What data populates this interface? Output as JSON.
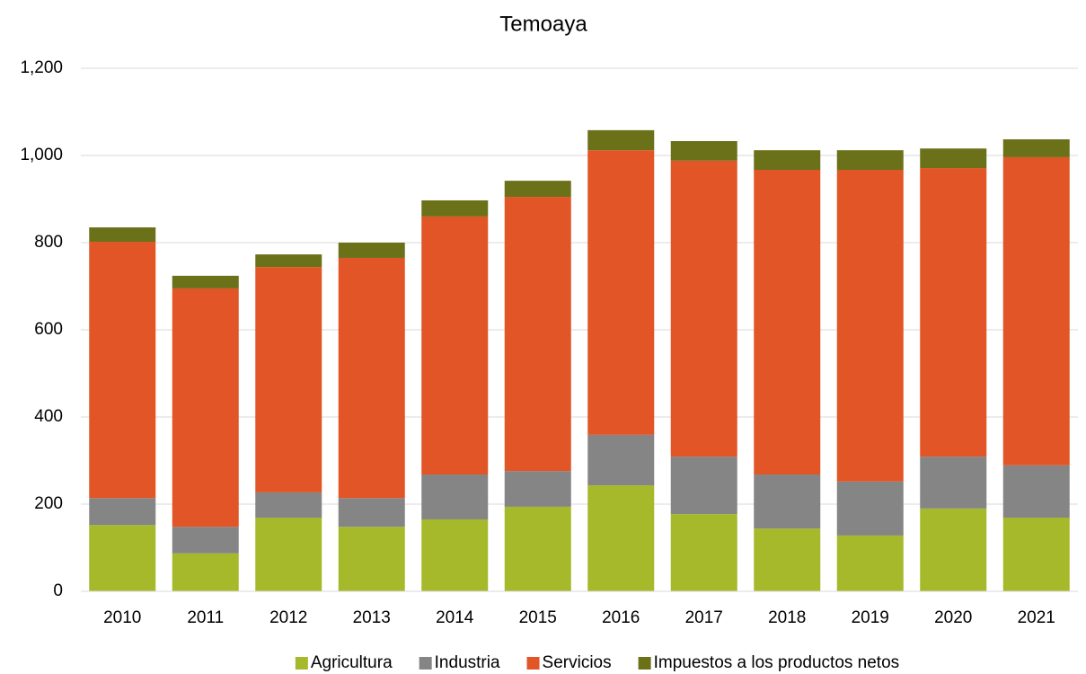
{
  "chart_data": {
    "type": "stacked_bar",
    "title": "Temoaya",
    "categories": [
      "2010",
      "2011",
      "2012",
      "2013",
      "2014",
      "2015",
      "2016",
      "2017",
      "2018",
      "2019",
      "2020",
      "2021"
    ],
    "series": [
      {
        "name": "Agricultura",
        "color": "#a5b92a",
        "values": [
          152,
          87,
          169,
          148,
          165,
          194,
          243,
          177,
          144,
          128,
          190,
          169
        ]
      },
      {
        "name": "Industria",
        "color": "#858585",
        "values": [
          62,
          61,
          58,
          66,
          103,
          82,
          116,
          132,
          124,
          124,
          119,
          120
        ]
      },
      {
        "name": "Servicios",
        "color": "#e15527",
        "values": [
          588,
          547,
          517,
          551,
          592,
          629,
          653,
          679,
          699,
          715,
          662,
          707
        ]
      },
      {
        "name": "Impuestos a los productos netos",
        "color": "#6b7119",
        "values": [
          33,
          29,
          29,
          35,
          37,
          37,
          46,
          45,
          45,
          45,
          45,
          41
        ]
      }
    ],
    "ylim": [
      0,
      1200
    ],
    "yticks": [
      0,
      200,
      400,
      600,
      800,
      {
        "value": 1000,
        "label": "1,000"
      },
      {
        "value": 1200,
        "label": "1,200"
      }
    ],
    "grid": true,
    "legend": "bottom"
  }
}
